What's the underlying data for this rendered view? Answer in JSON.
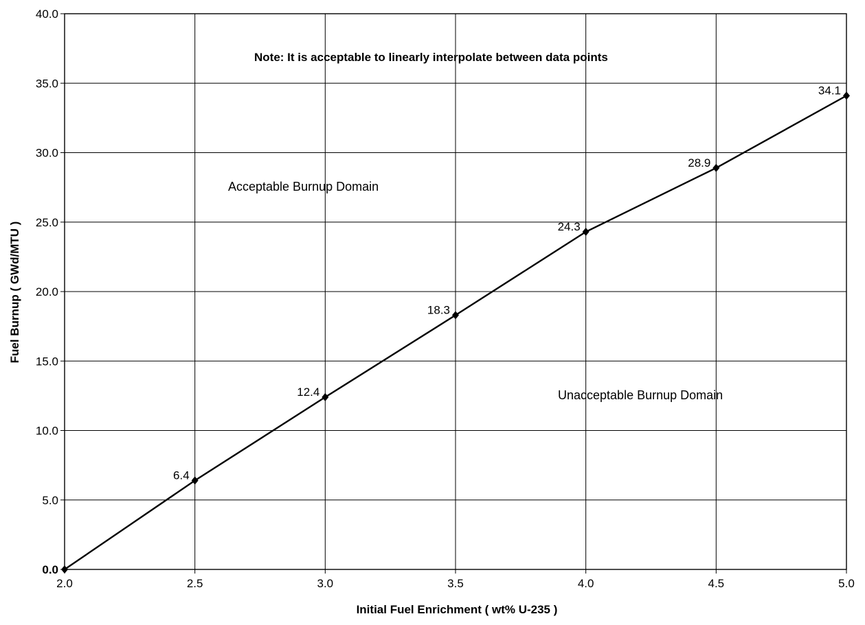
{
  "chart_data": {
    "type": "line",
    "title": "",
    "xlabel": "Initial Fuel Enrichment ( wt% U-235 )",
    "ylabel": "Fuel Burnup ( GWd/MTU )",
    "xlim": [
      2.0,
      5.0
    ],
    "ylim": [
      0.0,
      40.0
    ],
    "x_ticks": [
      "2.0",
      "2.5",
      "3.0",
      "3.5",
      "4.0",
      "4.5",
      "5.0"
    ],
    "y_ticks": [
      "0.0",
      "5.0",
      "10.0",
      "15.0",
      "20.0",
      "25.0",
      "30.0",
      "35.0",
      "40.0"
    ],
    "grid": true,
    "legend": "none",
    "series": [
      {
        "x": [
          2.0,
          2.5,
          3.0,
          3.5,
          4.0,
          4.5,
          5.0
        ],
        "y": [
          0.0,
          6.4,
          12.4,
          18.3,
          24.3,
          28.9,
          34.1
        ],
        "labels": [
          "",
          "6.4",
          "12.4",
          "18.3",
          "24.3",
          "28.9",
          "34.1"
        ]
      }
    ],
    "annotations": {
      "note": "Note: It is acceptable to linearly interpolate between data points",
      "upper_region": "Acceptable Burnup Domain",
      "lower_region": "Unacceptable Burnup Domain"
    },
    "line_color": "#000000"
  }
}
